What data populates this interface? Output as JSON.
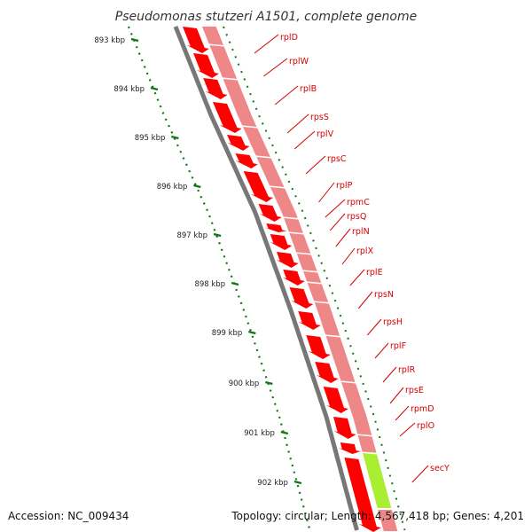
{
  "title": "Pseudomonas stutzeri A1501, complete genome",
  "footer": {
    "accession": "Accession: NC_009434",
    "summary": "Topology: circular; Length: 4,567,418 bp; Genes: 4,201"
  },
  "ticks": [
    "893 kbp",
    "894 kbp",
    "895 kbp",
    "896 kbp",
    "897 kbp",
    "898 kbp",
    "899 kbp",
    "900 kbp",
    "901 kbp",
    "902 kbp"
  ],
  "genes": [
    "rplD",
    "rplW",
    "rplB",
    "rpsS",
    "rplV",
    "rpsC",
    "rplP",
    "rpmC",
    "rpsQ",
    "rplN",
    "rplX",
    "rplE",
    "rpsN",
    "rpsH",
    "rplF",
    "rplR",
    "rpsE",
    "rpmD",
    "rplO",
    "secY"
  ],
  "colors": {
    "feature_arrow": "#ff0000",
    "feature_band": "#ee8888",
    "secY_band": "#aaee33",
    "backbone": "#777777",
    "tick": "#117711",
    "label": "#d40000"
  }
}
